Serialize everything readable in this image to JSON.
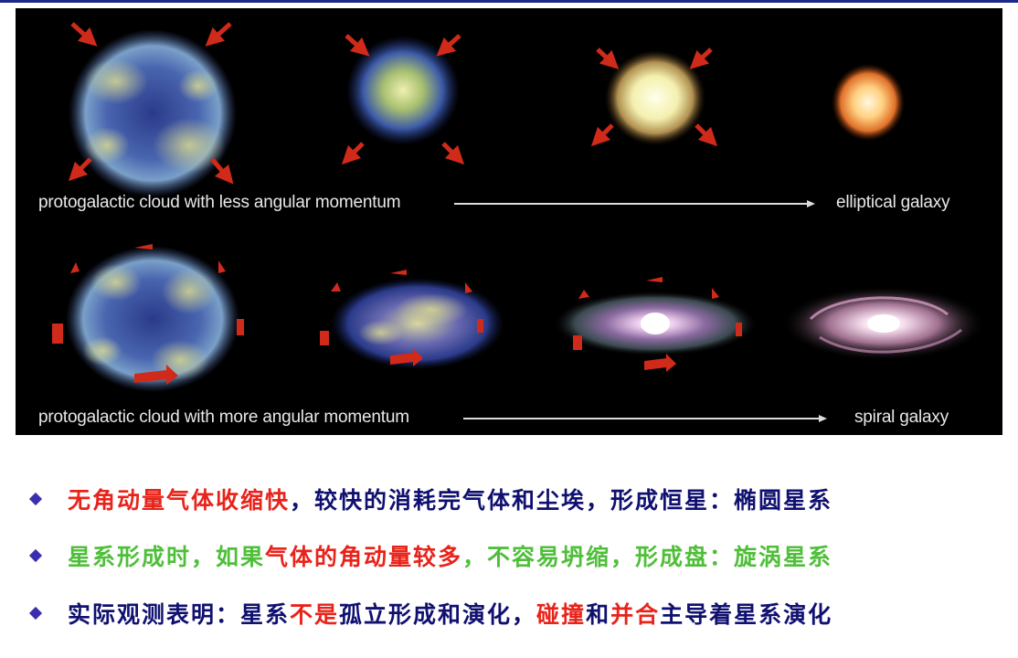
{
  "colors": {
    "red": "#e8231a",
    "navy": "#101070",
    "green": "#4fbf3a",
    "bullet": "#3b2fb0",
    "panel": "#000000",
    "arrow": "#d02a1a"
  },
  "figure": {
    "row1": {
      "caption_left": "protogalactic cloud with less angular momentum",
      "caption_right": "elliptical galaxy"
    },
    "row2": {
      "caption_left": "protogalactic cloud with more angular momentum",
      "caption_right": "spiral galaxy"
    }
  },
  "bullets": [
    {
      "segments": [
        {
          "text": "无角动量气体收缩快",
          "color": "red"
        },
        {
          "text": "，较快的消耗完气体和尘埃，形成恒星：椭圆星系",
          "color": "navy"
        }
      ]
    },
    {
      "segments": [
        {
          "text": "星系形成时，如果",
          "color": "green"
        },
        {
          "text": "气体的角动量较多",
          "color": "red"
        },
        {
          "text": "，不容易坍缩，形成盘：旋涡星系",
          "color": "green"
        }
      ]
    },
    {
      "segments": [
        {
          "text": "实际观测表明：星系",
          "color": "navy"
        },
        {
          "text": "不是",
          "color": "red"
        },
        {
          "text": "孤立形成和演化，",
          "color": "navy"
        },
        {
          "text": "碰撞",
          "color": "red"
        },
        {
          "text": "和",
          "color": "navy"
        },
        {
          "text": "并合",
          "color": "red"
        },
        {
          "text": "主导着星系演化",
          "color": "navy"
        }
      ]
    }
  ]
}
